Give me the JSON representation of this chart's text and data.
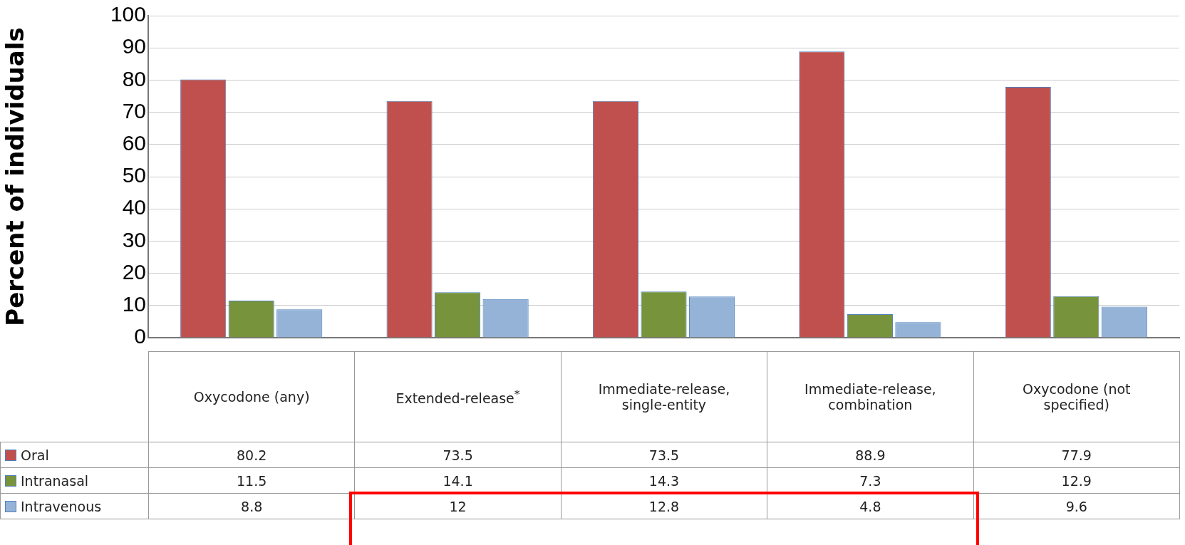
{
  "chart_data": {
    "type": "bar",
    "ylabel": "Percent of individuals",
    "categories": [
      "Oxycodone (any)",
      "Extended-release$^{*}$",
      "Immediate-release, single-entity",
      "Immediate-release, combination",
      "Oxycodone (not specified)"
    ],
    "series": [
      {
        "name": "Oral",
        "color": "#c0504d",
        "values": [
          80.2,
          73.5,
          73.5,
          88.9,
          77.9
        ]
      },
      {
        "name": "Intranasal",
        "color": "#77933c",
        "values": [
          11.5,
          14.1,
          14.3,
          7.3,
          12.9
        ]
      },
      {
        "name": "Intravenous",
        "color": "#95b3d7",
        "values": [
          8.8,
          12,
          12.8,
          4.8,
          9.6
        ]
      }
    ],
    "ylim": [
      0,
      100
    ],
    "yticks": [
      0,
      10,
      20,
      30,
      40,
      50,
      60,
      70,
      80,
      90,
      100
    ],
    "grid": "y",
    "legend": "bottom",
    "data_labels": true
  }
}
